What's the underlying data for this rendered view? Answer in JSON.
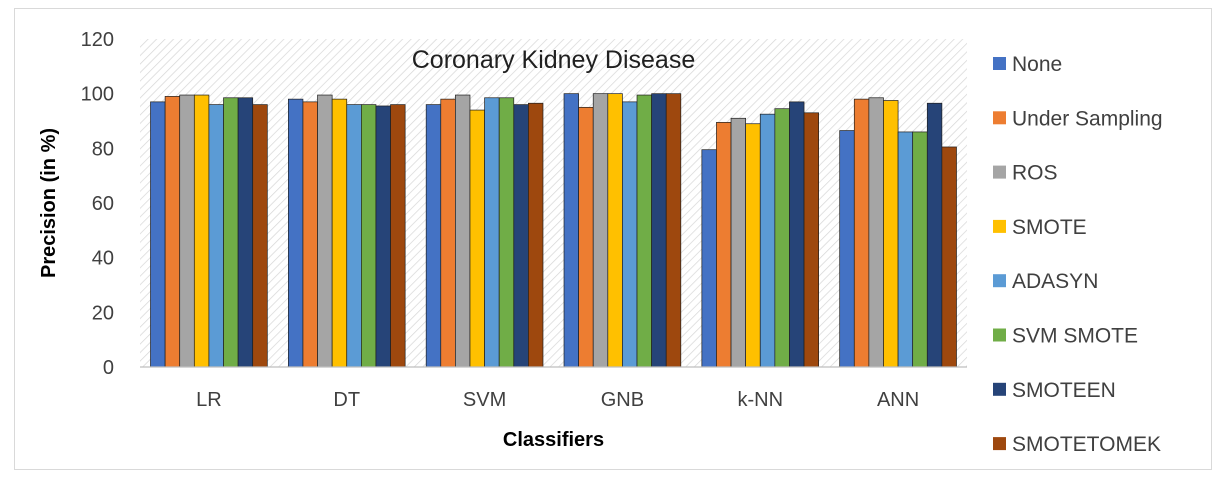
{
  "chart_data": {
    "type": "bar",
    "title": "Coronary Kidney Disease",
    "xlabel": "Classifiers",
    "ylabel": "Precision (in %)",
    "ylim": [
      0,
      120
    ],
    "yticks": [
      0,
      20,
      40,
      60,
      80,
      100,
      120
    ],
    "grid": "plot area hatched",
    "legend_position": "right",
    "categories": [
      "LR",
      "DT",
      "SVM",
      "GNB",
      "k-NN",
      "ANN"
    ],
    "series": [
      {
        "name": "None",
        "color": "#4472c4",
        "values": [
          97,
          98,
          96,
          100,
          79.5,
          86.5
        ]
      },
      {
        "name": "Under Sampling",
        "color": "#ed7d31",
        "values": [
          99,
          97,
          98,
          95,
          89.5,
          98
        ]
      },
      {
        "name": "ROS",
        "color": "#a5a5a5",
        "values": [
          99.5,
          99.5,
          99.5,
          100,
          91,
          98.5
        ]
      },
      {
        "name": "SMOTE",
        "color": "#ffc000",
        "values": [
          99.5,
          98,
          94,
          100,
          89,
          97.5
        ]
      },
      {
        "name": "ADASYN",
        "color": "#5b9bd5",
        "values": [
          96,
          96,
          98.5,
          97,
          92.5,
          86
        ]
      },
      {
        "name": "SVM SMOTE",
        "color": "#70ad47",
        "values": [
          98.5,
          96,
          98.5,
          99.5,
          94.5,
          86
        ]
      },
      {
        "name": "SMOTEEN",
        "color": "#264478",
        "values": [
          98.5,
          95.5,
          96,
          100,
          97,
          96.5
        ]
      },
      {
        "name": "SMOTETOMEK",
        "color": "#9e480e",
        "values": [
          96,
          96,
          96.5,
          100,
          93,
          80.5
        ]
      }
    ]
  }
}
